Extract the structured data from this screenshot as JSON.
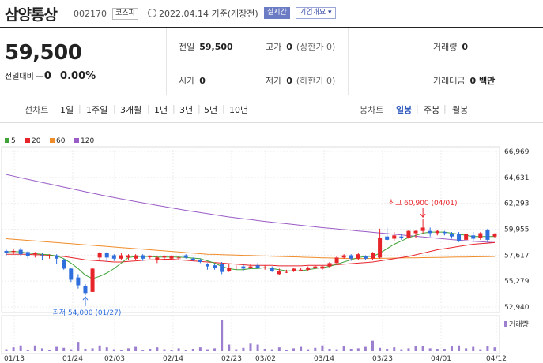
{
  "header": {
    "stock_name": "삼양통상",
    "stock_code": "002170",
    "market": "코스피",
    "date_text": "2022.04.14 기준(개장전)",
    "realtime_label": "실시간",
    "company_info_label": "기업개요 ▾"
  },
  "summary": {
    "price": "59,500",
    "change_label": "전일대비",
    "change_value": "0",
    "change_pct": "0.00%",
    "prev_close_label": "전일",
    "prev_close": "59,500",
    "open_label": "시가",
    "open": "0",
    "high_label": "고가",
    "high": "0",
    "high_note": "(상한가 0)",
    "low_label": "저가",
    "low": "0",
    "low_note": "(하한가 0)",
    "volume_label": "거래량",
    "volume": "0",
    "amount_label": "거래대금",
    "amount": "0 백만"
  },
  "nav": {
    "line_chart_label": "선차트",
    "periods": [
      "1일",
      "1주일",
      "3개월",
      "1년",
      "3년",
      "5년",
      "10년"
    ],
    "candle_chart_label": "봉차트",
    "candle_periods": [
      "일봉",
      "주봉",
      "월봉"
    ],
    "active_candle": "일봉"
  },
  "colors": {
    "up": "#e8242b",
    "down": "#2f6fdd",
    "ma5": "#3fa33a",
    "ma20": "#e8242b",
    "ma60": "#f08c2a",
    "ma120": "#9a5cc6",
    "volume": "#9d7fd0"
  },
  "chart_data": {
    "type": "candlestick",
    "legend": [
      {
        "name": "5",
        "color": "#3fa33a"
      },
      {
        "name": "20",
        "color": "#e8242b"
      },
      {
        "name": "60",
        "color": "#f08c2a"
      },
      {
        "name": "120",
        "color": "#9a5cc6"
      }
    ],
    "y_ticks": [
      "66,969",
      "64,631",
      "62,293",
      "59,955",
      "57,617",
      "55,279",
      "52,940"
    ],
    "ylim": [
      52940,
      66969
    ],
    "x_ticks": [
      "01/13",
      "01/24",
      "02/03",
      "02/14",
      "02/23",
      "03/02",
      "03/14",
      "03/23",
      "04/01",
      "04/12"
    ],
    "annotations": {
      "high": {
        "text": "최고 60,900 (04/01)",
        "value": 60900,
        "date": "04/01"
      },
      "low": {
        "text": "최저 54,000 (01/27)",
        "value": 54000,
        "date": "01/27"
      }
    },
    "volume_label": "거래량",
    "candles": [
      {
        "o": 58000,
        "c": 57800,
        "h": 58100,
        "l": 57600
      },
      {
        "o": 57900,
        "c": 58000,
        "h": 58200,
        "l": 57700
      },
      {
        "o": 58100,
        "c": 57700,
        "h": 58300,
        "l": 57500
      },
      {
        "o": 57900,
        "c": 57500,
        "h": 58000,
        "l": 57300
      },
      {
        "o": 57700,
        "c": 57800,
        "h": 57900,
        "l": 57400
      },
      {
        "o": 57600,
        "c": 57500,
        "h": 57800,
        "l": 57200
      },
      {
        "o": 57500,
        "c": 57600,
        "h": 57700,
        "l": 57300
      },
      {
        "o": 57600,
        "c": 57300,
        "h": 57700,
        "l": 56800
      },
      {
        "o": 57200,
        "c": 56400,
        "h": 57300,
        "l": 56300
      },
      {
        "o": 56400,
        "c": 55400,
        "h": 56500,
        "l": 55200
      },
      {
        "o": 55600,
        "c": 54900,
        "h": 55900,
        "l": 54600
      },
      {
        "o": 54800,
        "c": 54200,
        "h": 55000,
        "l": 54000
      },
      {
        "o": 54300,
        "c": 56400,
        "h": 56500,
        "l": 54300
      },
      {
        "o": 57400,
        "c": 57800,
        "h": 57900,
        "l": 57200
      },
      {
        "o": 57800,
        "c": 57400,
        "h": 57900,
        "l": 57000
      },
      {
        "o": 57600,
        "c": 57300,
        "h": 57700,
        "l": 57100
      },
      {
        "o": 57300,
        "c": 57600,
        "h": 57800,
        "l": 57200
      },
      {
        "o": 57400,
        "c": 57600,
        "h": 57700,
        "l": 57200
      },
      {
        "o": 57300,
        "c": 57600,
        "h": 57700,
        "l": 57200
      },
      {
        "o": 57600,
        "c": 57300,
        "h": 57700,
        "l": 57100
      },
      {
        "o": 57500,
        "c": 57500,
        "h": 57600,
        "l": 57300
      },
      {
        "o": 57200,
        "c": 57400,
        "h": 57500,
        "l": 56900
      },
      {
        "o": 57400,
        "c": 57500,
        "h": 57600,
        "l": 57200
      },
      {
        "o": 57300,
        "c": 57500,
        "h": 57600,
        "l": 57200
      },
      {
        "o": 57400,
        "c": 57400,
        "h": 57500,
        "l": 57200
      },
      {
        "o": 57600,
        "c": 57400,
        "h": 57700,
        "l": 57300
      },
      {
        "o": 57300,
        "c": 57200,
        "h": 57400,
        "l": 57100
      },
      {
        "o": 57200,
        "c": 57000,
        "h": 57300,
        "l": 56900
      },
      {
        "o": 56800,
        "c": 56600,
        "h": 56900,
        "l": 56300
      },
      {
        "o": 56700,
        "c": 56500,
        "h": 56800,
        "l": 56300
      },
      {
        "o": 56800,
        "c": 56100,
        "h": 57000,
        "l": 55900
      },
      {
        "o": 56200,
        "c": 56500,
        "h": 56800,
        "l": 56100
      },
      {
        "o": 56500,
        "c": 56500,
        "h": 56700,
        "l": 56300
      },
      {
        "o": 56600,
        "c": 56400,
        "h": 56800,
        "l": 56200
      },
      {
        "o": 56500,
        "c": 56600,
        "h": 56800,
        "l": 56400
      },
      {
        "o": 56700,
        "c": 56500,
        "h": 56900,
        "l": 56400
      },
      {
        "o": 56500,
        "c": 56500,
        "h": 56700,
        "l": 56300
      },
      {
        "o": 56500,
        "c": 56200,
        "h": 56600,
        "l": 56100
      },
      {
        "o": 55900,
        "c": 56200,
        "h": 56400,
        "l": 55800
      },
      {
        "o": 56100,
        "c": 56100,
        "h": 56300,
        "l": 56000
      },
      {
        "o": 56200,
        "c": 56400,
        "h": 56500,
        "l": 56100
      },
      {
        "o": 56300,
        "c": 56300,
        "h": 56500,
        "l": 56200
      },
      {
        "o": 56300,
        "c": 56500,
        "h": 56600,
        "l": 56200
      },
      {
        "o": 56500,
        "c": 56600,
        "h": 56700,
        "l": 56400
      },
      {
        "o": 56400,
        "c": 56600,
        "h": 56700,
        "l": 56300
      },
      {
        "o": 56600,
        "c": 56900,
        "h": 57000,
        "l": 56500
      },
      {
        "o": 56900,
        "c": 57400,
        "h": 57500,
        "l": 56800
      },
      {
        "o": 57400,
        "c": 57600,
        "h": 57700,
        "l": 57300
      },
      {
        "o": 57600,
        "c": 57300,
        "h": 57700,
        "l": 57100
      },
      {
        "o": 57300,
        "c": 57700,
        "h": 57800,
        "l": 57200
      },
      {
        "o": 57500,
        "c": 57300,
        "h": 57600,
        "l": 57200
      },
      {
        "o": 57300,
        "c": 57800,
        "h": 57900,
        "l": 57200
      },
      {
        "o": 57400,
        "c": 59200,
        "h": 60000,
        "l": 57300
      },
      {
        "o": 59300,
        "c": 59000,
        "h": 60100,
        "l": 58900
      },
      {
        "o": 59100,
        "c": 59400,
        "h": 59700,
        "l": 58900
      },
      {
        "o": 59300,
        "c": 59200,
        "h": 59500,
        "l": 59000
      },
      {
        "o": 59200,
        "c": 59800,
        "h": 59900,
        "l": 59100
      },
      {
        "o": 59600,
        "c": 59800,
        "h": 59900,
        "l": 59200
      },
      {
        "o": 59800,
        "c": 60100,
        "h": 60900,
        "l": 59600
      },
      {
        "o": 59800,
        "c": 59600,
        "h": 60100,
        "l": 59300
      },
      {
        "o": 59600,
        "c": 59800,
        "h": 59900,
        "l": 59400
      },
      {
        "o": 59700,
        "c": 59600,
        "h": 59800,
        "l": 59400
      },
      {
        "o": 59500,
        "c": 59300,
        "h": 59700,
        "l": 59100
      },
      {
        "o": 59500,
        "c": 58900,
        "h": 59700,
        "l": 58800
      },
      {
        "o": 59000,
        "c": 59500,
        "h": 59600,
        "l": 58900
      },
      {
        "o": 59400,
        "c": 59100,
        "h": 59700,
        "l": 58900
      },
      {
        "o": 59200,
        "c": 59600,
        "h": 59700,
        "l": 59000
      },
      {
        "o": 59900,
        "c": 59000,
        "h": 60000,
        "l": 58800
      },
      {
        "o": 59300,
        "c": 59500,
        "h": 59600,
        "l": 59200
      }
    ],
    "ma5": [
      57900,
      57950,
      57900,
      57800,
      57750,
      57700,
      57650,
      57550,
      57300,
      56900,
      56400,
      55800,
      55500,
      55700,
      56000,
      56400,
      56900,
      57400,
      57500,
      57500,
      57500,
      57450,
      57450,
      57450,
      57450,
      57400,
      57350,
      57300,
      57100,
      56900,
      56600,
      56400,
      56300,
      56300,
      56400,
      56400,
      56500,
      56400,
      56300,
      56200,
      56200,
      56200,
      56300,
      56400,
      56500,
      56600,
      56800,
      57000,
      57200,
      57400,
      57500,
      57500,
      57800,
      58200,
      58600,
      58900,
      59200,
      59400,
      59600,
      59700,
      59700,
      59700,
      59600,
      59500,
      59400,
      59300,
      59300,
      59300,
      59300
    ],
    "ma20": [
      57700,
      57700,
      57700,
      57700,
      57650,
      57650,
      57600,
      57550,
      57500,
      57400,
      57300,
      57200,
      57150,
      57100,
      57050,
      57000,
      57000,
      57050,
      57100,
      57150,
      57200,
      57200,
      57250,
      57250,
      57200,
      57150,
      57100,
      57050,
      57000,
      56950,
      56900,
      56850,
      56800,
      56750,
      56700,
      56700,
      56700,
      56700,
      56650,
      56650,
      56650,
      56650,
      56700,
      56700,
      56700,
      56700,
      56750,
      56800,
      56850,
      56900,
      56950,
      57000,
      57100,
      57200,
      57300,
      57400,
      57500,
      57650,
      57800,
      57950,
      58100,
      58200,
      58300,
      58400,
      58500,
      58600,
      58650,
      58700,
      58750
    ],
    "ma60": [
      59100,
      59050,
      59000,
      58950,
      58900,
      58850,
      58800,
      58750,
      58700,
      58650,
      58600,
      58550,
      58500,
      58450,
      58400,
      58350,
      58300,
      58250,
      58200,
      58150,
      58100,
      58050,
      58000,
      57950,
      57900,
      57850,
      57800,
      57750,
      57700,
      57680,
      57660,
      57640,
      57620,
      57600,
      57580,
      57560,
      57540,
      57520,
      57500,
      57480,
      57460,
      57440,
      57420,
      57400,
      57380,
      57360,
      57340,
      57320,
      57300,
      57300,
      57310,
      57320,
      57330,
      57340,
      57350,
      57360,
      57370,
      57380,
      57390,
      57400,
      57410,
      57420,
      57430,
      57440,
      57450,
      57460,
      57470,
      57480,
      57500
    ],
    "ma120": [
      64900,
      64750,
      64600,
      64460,
      64320,
      64180,
      64040,
      63900,
      63760,
      63620,
      63480,
      63340,
      63200,
      63070,
      62940,
      62810,
      62690,
      62570,
      62450,
      62330,
      62210,
      62100,
      61990,
      61880,
      61770,
      61660,
      61560,
      61460,
      61360,
      61260,
      61160,
      61060,
      60980,
      60900,
      60820,
      60740,
      60660,
      60590,
      60520,
      60450,
      60380,
      60310,
      60240,
      60170,
      60100,
      60040,
      59980,
      59920,
      59860,
      59800,
      59740,
      59680,
      59620,
      59560,
      59500,
      59440,
      59380,
      59320,
      59260,
      59200,
      59140,
      59080,
      59020,
      58970,
      58920,
      58870,
      58830,
      58790,
      58760
    ],
    "volume": [
      20,
      40,
      60,
      15,
      60,
      30,
      10,
      45,
      35,
      20,
      90,
      25,
      30,
      60,
      40,
      20,
      15,
      30,
      45,
      15,
      25,
      40,
      20,
      15,
      30,
      10,
      25,
      40,
      20,
      30,
      330,
      70,
      20,
      35,
      80,
      70,
      25,
      20,
      40,
      15,
      30,
      45,
      20,
      35,
      60,
      25,
      20,
      50,
      25,
      30,
      45,
      110,
      35,
      25,
      40,
      20,
      30,
      50,
      55,
      30,
      25,
      25,
      55,
      60,
      30,
      45,
      20,
      50,
      40
    ]
  }
}
